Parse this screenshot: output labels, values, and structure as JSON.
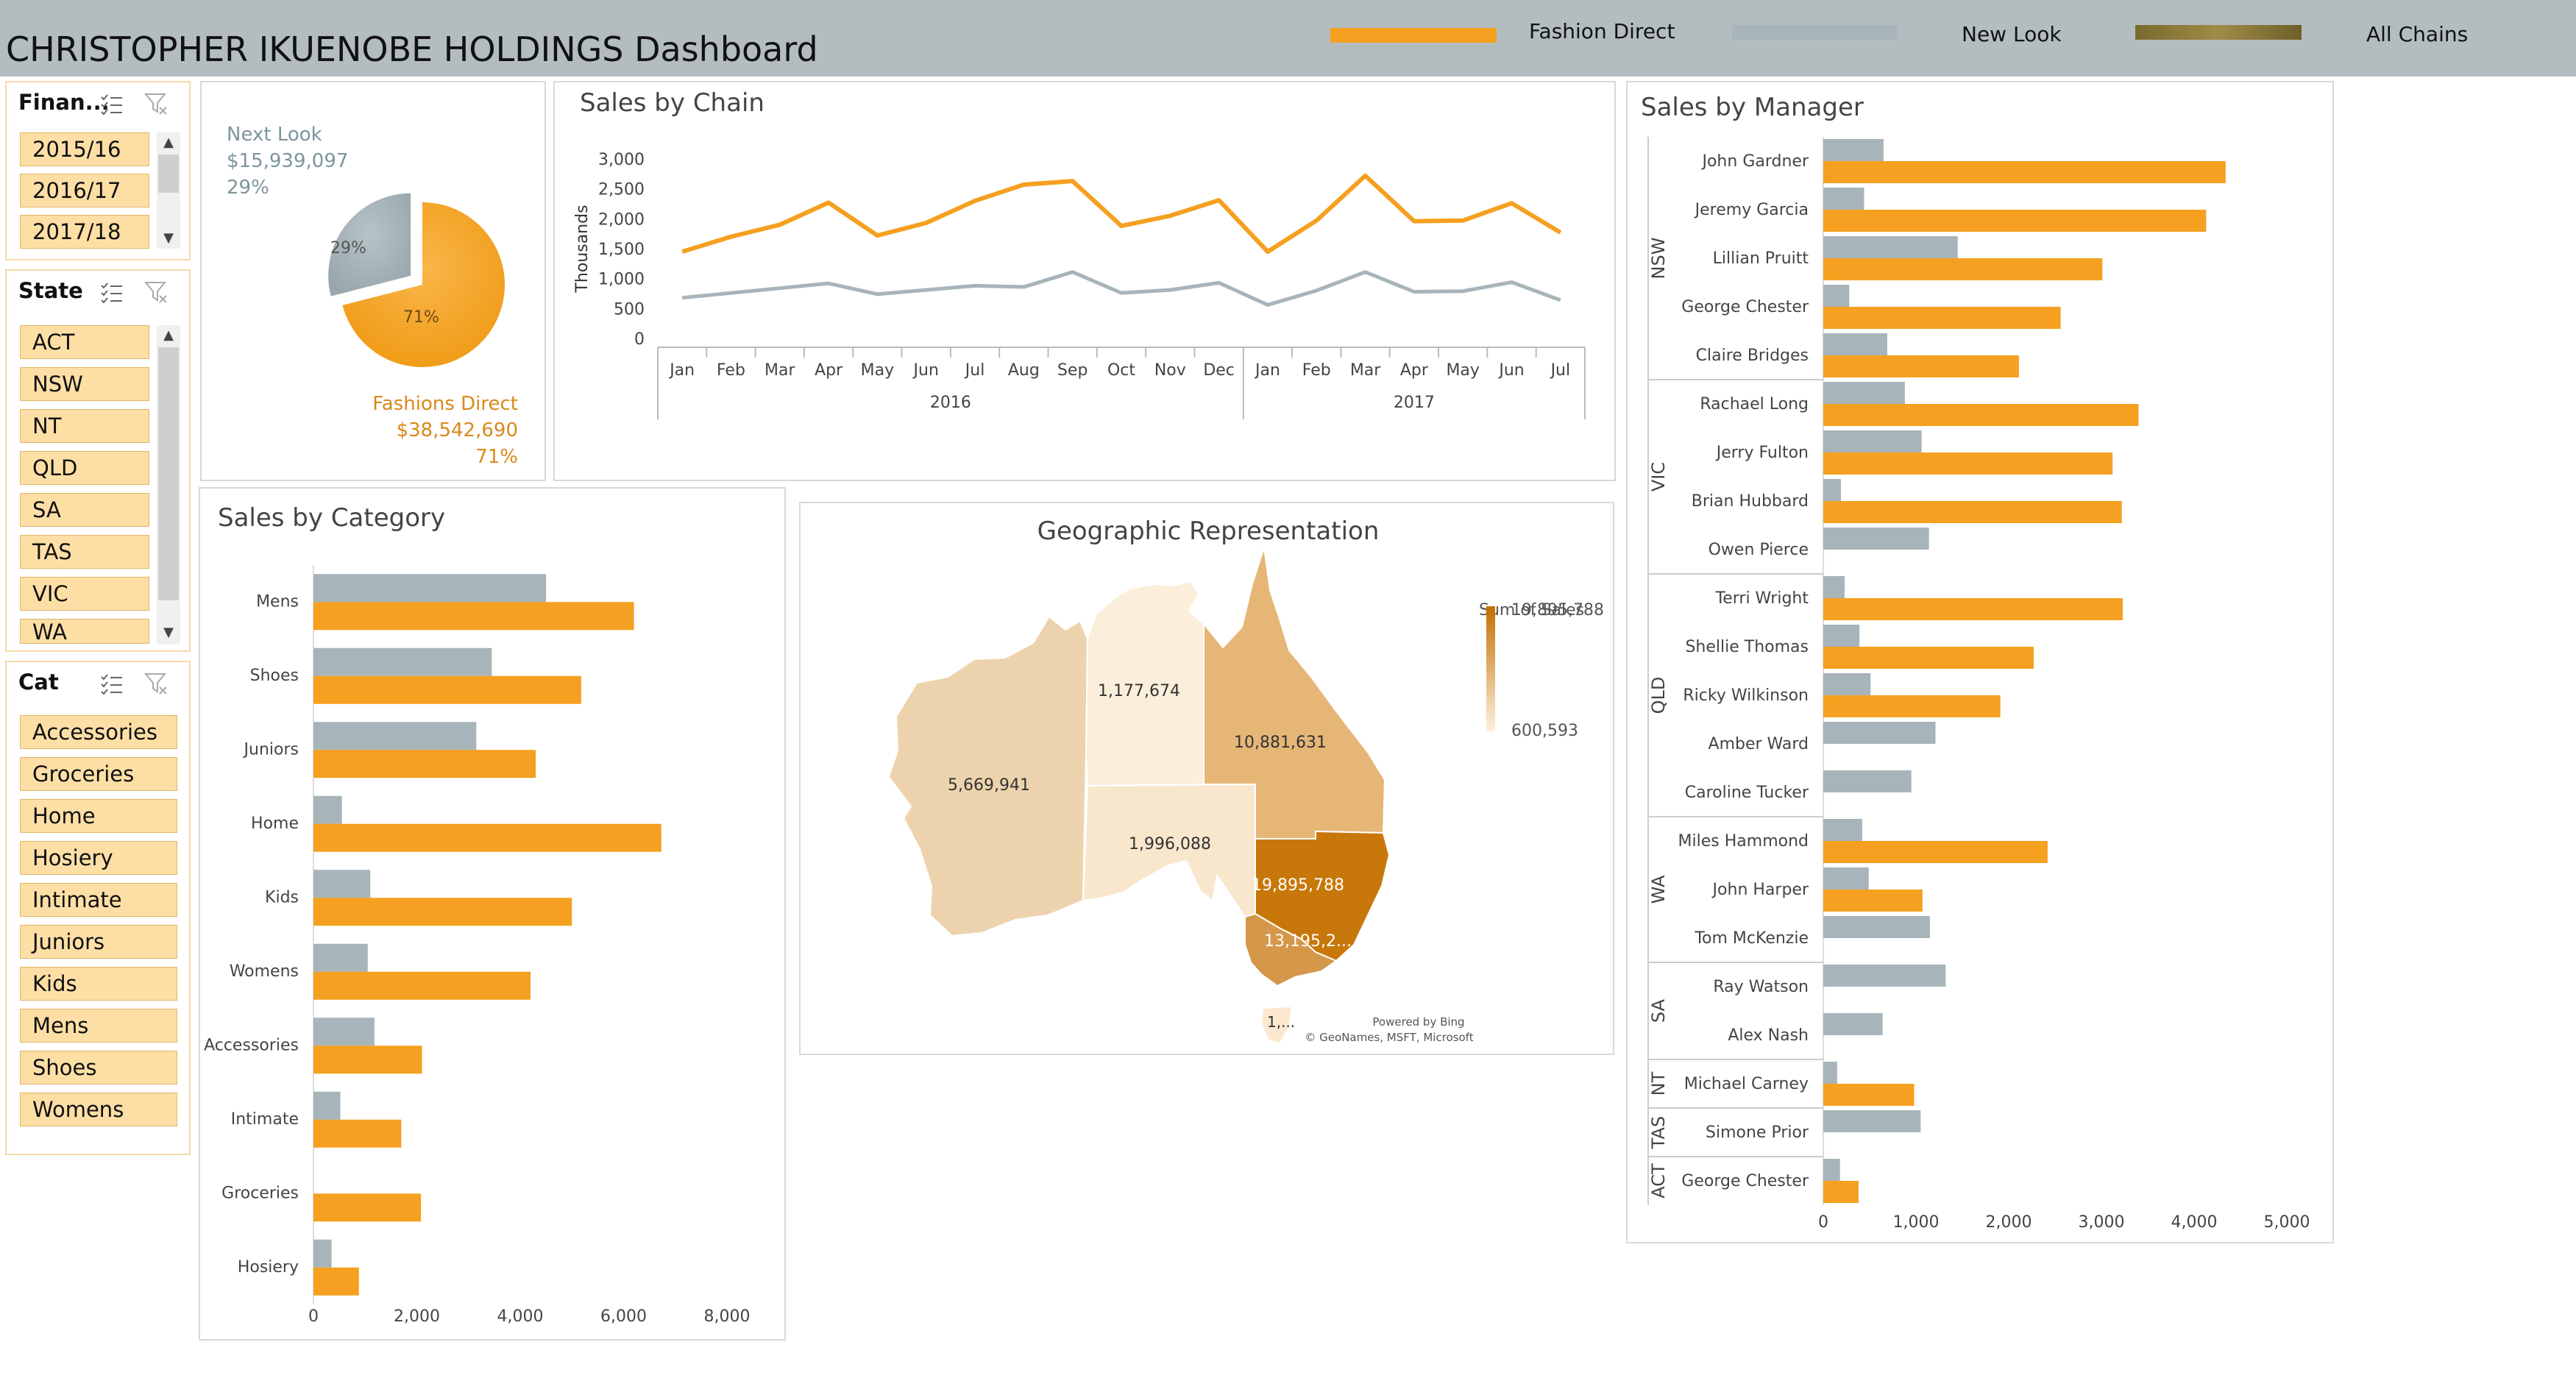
{
  "header": {
    "title": "CHRISTOPHER IKUENOBE HOLDINGS Dashboard",
    "legend": [
      {
        "label": "Fashion Direct",
        "color": "#f5a020"
      },
      {
        "label": "New Look",
        "color": "#a7b4b9"
      },
      {
        "label": "All Chains",
        "color": "#8c7a3a"
      }
    ]
  },
  "slicers": {
    "financial_year": {
      "title": "Finan...",
      "items": [
        "2015/16",
        "2016/17",
        "2017/18"
      ]
    },
    "state": {
      "title": "State",
      "items": [
        "ACT",
        "NSW",
        "NT",
        "QLD",
        "SA",
        "TAS",
        "VIC",
        "WA"
      ]
    },
    "category": {
      "title": "Cat",
      "items": [
        "Accessories",
        "Groceries",
        "Home",
        "Hosiery",
        "Intimate",
        "Juniors",
        "Kids",
        "Mens",
        "Shoes",
        "Womens"
      ]
    }
  },
  "pie": {
    "next_look": {
      "name": "Next Look",
      "value": "$15,939,097",
      "pct": "29%",
      "inner": "29%",
      "share": 0.29
    },
    "fashions_direct": {
      "name": "Fashions Direct",
      "value": "$38,542,690",
      "pct": "71%",
      "inner": "71%",
      "share": 0.71
    }
  },
  "colors": {
    "orange": "#f5a020",
    "gray": "#a7b4b9"
  },
  "chain_chart": {
    "title": "Sales by Chain",
    "ylabel": "Thousands",
    "yticks": [
      "3,000",
      "2,500",
      "2,000",
      "1,500",
      "1,000",
      "500",
      "0"
    ],
    "months": [
      "Jan",
      "Feb",
      "Mar",
      "Apr",
      "May",
      "Jun",
      "Jul",
      "Aug",
      "Sep",
      "Oct",
      "Nov",
      "Dec",
      "Jan",
      "Feb",
      "Mar",
      "Apr",
      "May",
      "Jun",
      "Jul"
    ],
    "years": [
      "2016",
      "2017"
    ]
  },
  "category_chart": {
    "title": "Sales by Category",
    "xticks": [
      "0",
      "2,000",
      "4,000",
      "6,000",
      "8,000"
    ],
    "categories": [
      "Mens",
      "Shoes",
      "Juniors",
      "Home",
      "Kids",
      "Womens",
      "Accessories",
      "Intimate",
      "Groceries",
      "Hosiery"
    ]
  },
  "map": {
    "title": "Geographic Representation",
    "legend_title": "Sum of Sales",
    "legend_max": "19,895,788",
    "legend_min": "600,593",
    "labels": {
      "WA": "5,669,941",
      "NT": "1,177,674",
      "QLD": "10,881,631",
      "SA": "1,996,088",
      "NSW": "19,895,788",
      "VIC": "13,195,2...",
      "TAS": "1,..."
    },
    "credit1": "Powered by Bing",
    "credit2": "© GeoNames, MSFT, Microsoft"
  },
  "manager_chart": {
    "title": "Sales by Manager",
    "xticks": [
      "0",
      "1,000",
      "2,000",
      "3,000",
      "4,000",
      "5,000"
    ],
    "groups": [
      {
        "state": "NSW",
        "managers": [
          "John Gardner",
          "Jeremy Garcia",
          "Lillian Pruitt",
          "George Chester",
          "Claire Bridges"
        ]
      },
      {
        "state": "VIC",
        "managers": [
          "Rachael Long",
          "Jerry Fulton",
          "Brian Hubbard",
          "Owen Pierce"
        ]
      },
      {
        "state": "QLD",
        "managers": [
          "Terri Wright",
          "Shellie Thomas",
          "Ricky Wilkinson",
          "Amber Ward",
          "Caroline Tucker"
        ]
      },
      {
        "state": "WA",
        "managers": [
          "Miles Hammond",
          "John Harper",
          "Tom McKenzie"
        ]
      },
      {
        "state": "SA",
        "managers": [
          "Ray Watson",
          "Alex Nash"
        ]
      },
      {
        "state": "NT",
        "managers": [
          "Michael Carney"
        ]
      },
      {
        "state": "TAS",
        "managers": [
          "Simone Prior"
        ]
      },
      {
        "state": "ACT",
        "managers": [
          "George Chester"
        ]
      }
    ]
  },
  "chart_data": [
    {
      "type": "pie",
      "categories": [
        "Next Look",
        "Fashions Direct"
      ],
      "values": [
        15939097,
        38542690
      ]
    },
    {
      "type": "line",
      "title": "Sales by Chain",
      "ylabel": "Thousands",
      "ylim": [
        0,
        3000
      ],
      "x": [
        "Jan 2016",
        "Feb 2016",
        "Mar 2016",
        "Apr 2016",
        "May 2016",
        "Jun 2016",
        "Jul 2016",
        "Aug 2016",
        "Sep 2016",
        "Oct 2016",
        "Nov 2016",
        "Dec 2016",
        "Jan 2017",
        "Feb 2017",
        "Mar 2017",
        "Apr 2017",
        "May 2017",
        "Jun 2017",
        "Jul 2017"
      ],
      "series": [
        {
          "name": "Fashion Direct",
          "values": [
            1450,
            1700,
            1900,
            2270,
            1720,
            1930,
            2300,
            2570,
            2630,
            1880,
            2050,
            2310,
            1450,
            1970,
            2720,
            1960,
            1970,
            2260,
            1770
          ]
        },
        {
          "name": "New Look",
          "values": [
            680,
            760,
            840,
            920,
            740,
            810,
            880,
            860,
            1110,
            760,
            810,
            930,
            560,
            800,
            1110,
            780,
            790,
            940,
            640
          ]
        }
      ]
    },
    {
      "type": "bar",
      "title": "Sales by Category",
      "xlim": [
        0,
        8000
      ],
      "categories": [
        "Mens",
        "Shoes",
        "Juniors",
        "Home",
        "Kids",
        "Womens",
        "Accessories",
        "Intimate",
        "Groceries",
        "Hosiery"
      ],
      "series": [
        {
          "name": "New Look",
          "values": [
            4500,
            3450,
            3150,
            550,
            1100,
            1050,
            1180,
            520,
            0,
            350
          ]
        },
        {
          "name": "Fashion Direct",
          "values": [
            6200,
            5180,
            4300,
            6730,
            5000,
            4200,
            2100,
            1700,
            2080,
            880
          ]
        }
      ]
    },
    {
      "type": "bar",
      "title": "Sales by Manager",
      "xlim": [
        0,
        5000
      ],
      "categories": [
        "John Gardner",
        "Jeremy Garcia",
        "Lillian Pruitt",
        "George Chester",
        "Claire Bridges",
        "Rachael Long",
        "Jerry Fulton",
        "Brian Hubbard",
        "Owen Pierce",
        "Terri Wright",
        "Shellie Thomas",
        "Ricky Wilkinson",
        "Amber Ward",
        "Caroline Tucker",
        "Miles Hammond",
        "John Harper",
        "Tom McKenzie",
        "Ray Watson",
        "Alex Nash",
        "Michael Carney",
        "Simone Prior",
        "George Chester"
      ],
      "series": [
        {
          "name": "New Look",
          "values": [
            650,
            440,
            1450,
            280,
            690,
            880,
            1060,
            190,
            1140,
            230,
            390,
            510,
            1210,
            950,
            420,
            490,
            1150,
            1320,
            640,
            150,
            1050,
            180
          ]
        },
        {
          "name": "Fashion Direct",
          "values": [
            4340,
            4130,
            3010,
            2560,
            2110,
            3400,
            3120,
            3220,
            0,
            3230,
            2270,
            1910,
            0,
            0,
            2420,
            1070,
            0,
            0,
            0,
            980,
            0,
            380
          ]
        }
      ]
    },
    {
      "type": "heatmap",
      "title": "Geographic Representation",
      "categories": [
        "WA",
        "NT",
        "QLD",
        "SA",
        "NSW",
        "VIC",
        "TAS"
      ],
      "values": [
        5669941,
        1177674,
        10881631,
        1996088,
        19895788,
        13195200,
        600593
      ],
      "range": [
        600593,
        19895788
      ]
    }
  ]
}
